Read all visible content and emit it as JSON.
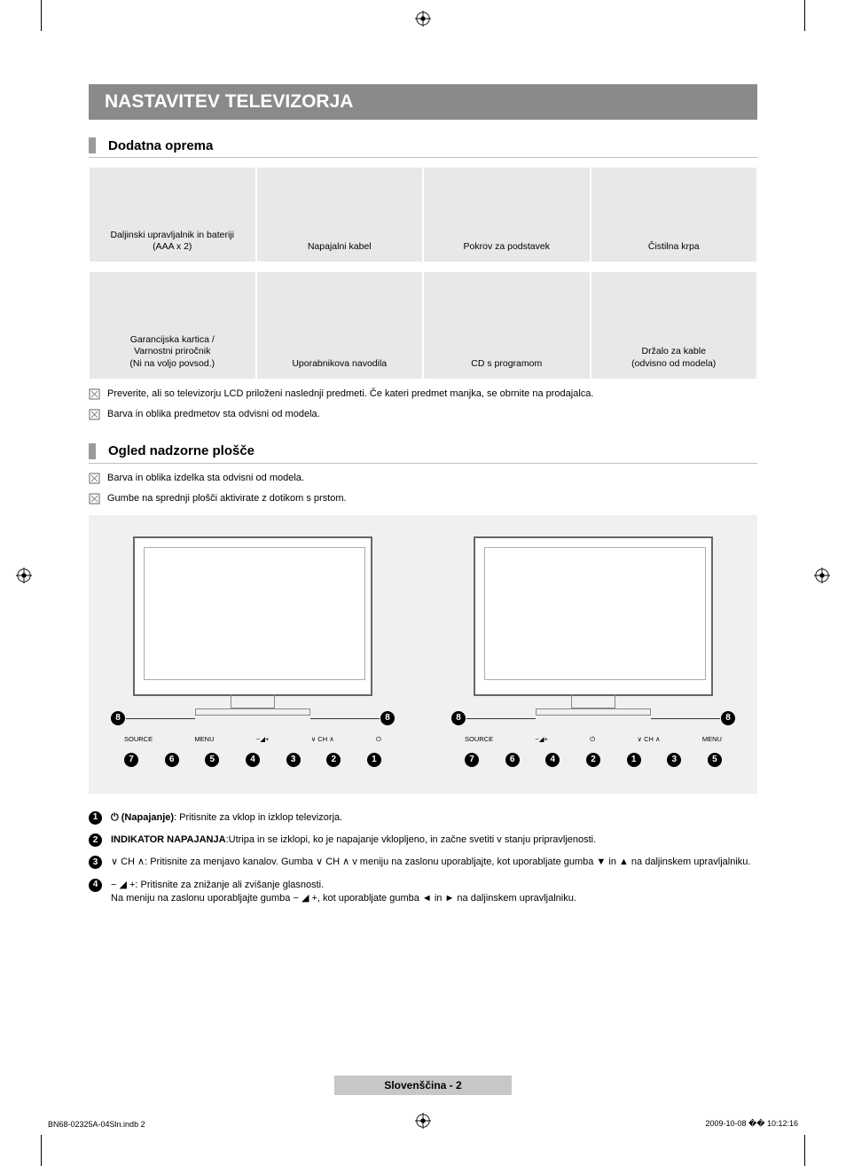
{
  "title": "NASTAVITEV TELEVIZORJA",
  "section1": {
    "title": "Dodatna oprema",
    "row1": [
      {
        "label": "Daljinski upravljalnik in bateriji\n(AAA x 2)"
      },
      {
        "label": "Napajalni kabel"
      },
      {
        "label": "Pokrov za podstavek"
      },
      {
        "label": "Čistilna krpa"
      }
    ],
    "row2": [
      {
        "label": "Garancijska kartica /\nVarnostni priročnik\n(Ni na voljo povsod.)"
      },
      {
        "label": "Uporabnikova navodila"
      },
      {
        "label": "CD s programom"
      },
      {
        "label": "Držalo za kable\n(odvisno od modela)"
      }
    ],
    "notes": [
      "Preverite, ali so televizorju LCD priloženi naslednji predmeti. Če kateri predmet manjka, se obrnite na prodajalca.",
      "Barva in oblika predmetov sta odvisni od modela."
    ]
  },
  "section2": {
    "title": "Ogled nadzorne plošče",
    "notes": [
      "Barva in oblika izdelka sta odvisni od modela.",
      "Gumbe na sprednji plošči aktivirate z dotikom s prstom."
    ],
    "left_buttons": [
      "SOURCE",
      "MENU",
      "−◢+",
      "∨ CH ∧",
      "⏻"
    ],
    "left_nums_top": [
      "8",
      "8"
    ],
    "left_nums_bottom": [
      "7",
      "6",
      "5",
      "4",
      "3",
      "2",
      "1"
    ],
    "right_buttons": [
      "SOURCE",
      "−◢+",
      "⏻",
      "∨ CH ∧",
      "MENU"
    ],
    "right_nums_top": [
      "8",
      "8"
    ],
    "right_nums_bottom": [
      "7",
      "6",
      "4",
      "2",
      "1",
      "3",
      "5"
    ]
  },
  "items": [
    {
      "n": "1",
      "strong": "⏻ (Napajanje)",
      "rest": ": Pritisnite za vklop in izklop televizorja."
    },
    {
      "n": "2",
      "strong": "INDIKATOR NAPAJANJA",
      "rest": ":Utripa in se izklopi, ko je napajanje vklopljeno, in začne svetiti v stanju pripravljenosti."
    },
    {
      "n": "3",
      "strong": "",
      "rest": "∨ CH ∧: Pritisnite za menjavo kanalov. Gumba ∨ CH ∧ v meniju na zaslonu uporabljajte, kot uporabljate gumba ▼ in ▲ na daljinskem upravljalniku."
    },
    {
      "n": "4",
      "strong": "",
      "rest": "− ◢ +: Pritisnite za znižanje ali zvišanje glasnosti.",
      "rest2": "Na meniju na zaslonu uporabljajte gumba − ◢ +, kot uporabljate gumba ◄ in ► na daljinskem upravljalniku."
    }
  ],
  "footer": "Slovenščina - 2",
  "bottom": {
    "left": "BN68-02325A-04Sln.indb   2",
    "right": "2009-10-08   �� 10:12:16"
  },
  "colors": {
    "titlebar_bg": "#8a8a8a",
    "section_mark": "#9a9a9a",
    "cell_bg": "#e8e8e8",
    "panel_bg": "#f0f0f0",
    "footer_bg": "#c7c7c7"
  }
}
